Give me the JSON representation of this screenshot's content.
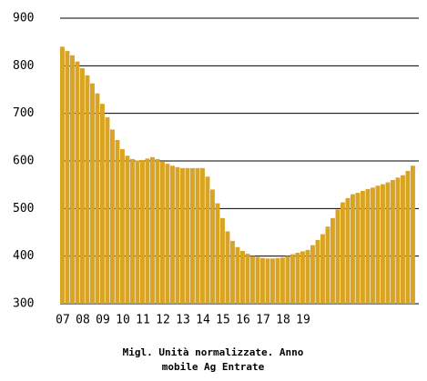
{
  "chart_data": {
    "type": "bar",
    "categories": [
      "07",
      null,
      null,
      null,
      "08",
      null,
      null,
      null,
      "09",
      null,
      null,
      null,
      "10",
      null,
      null,
      null,
      "11",
      null,
      null,
      null,
      "12",
      null,
      null,
      null,
      "13",
      null,
      null,
      null,
      "14",
      null,
      null,
      null,
      "15",
      null,
      null,
      null,
      "16",
      null,
      null,
      null,
      "17",
      null,
      null,
      null,
      "18",
      null,
      null,
      null,
      "19",
      null,
      null,
      null,
      null,
      null,
      null,
      null,
      null,
      null,
      null,
      null,
      null,
      null,
      null,
      null,
      null,
      null,
      null,
      null,
      null,
      null,
      null
    ],
    "values": [
      840,
      831,
      822,
      809,
      795,
      780,
      763,
      742,
      720,
      692,
      666,
      644,
      625,
      611,
      604,
      601,
      602,
      605,
      608,
      604,
      598,
      594,
      590,
      587,
      585,
      585,
      585,
      585,
      585,
      567,
      540,
      511,
      480,
      452,
      432,
      419,
      411,
      405,
      400,
      398,
      396,
      395,
      395,
      396,
      397,
      400,
      404,
      407,
      410,
      413,
      423,
      434,
      446,
      462,
      480,
      498,
      513,
      522,
      530,
      533,
      537,
      541,
      544,
      548,
      551,
      555,
      560,
      565,
      570,
      579,
      590
    ],
    "color": "#d9a424",
    "ylim": [
      300,
      900
    ],
    "yticks": [
      300,
      400,
      500,
      600,
      700,
      800,
      900
    ],
    "grid": true,
    "caption": [
      "Migl. Unità normalizzate. Anno",
      "mobile Ag Entrate"
    ]
  }
}
